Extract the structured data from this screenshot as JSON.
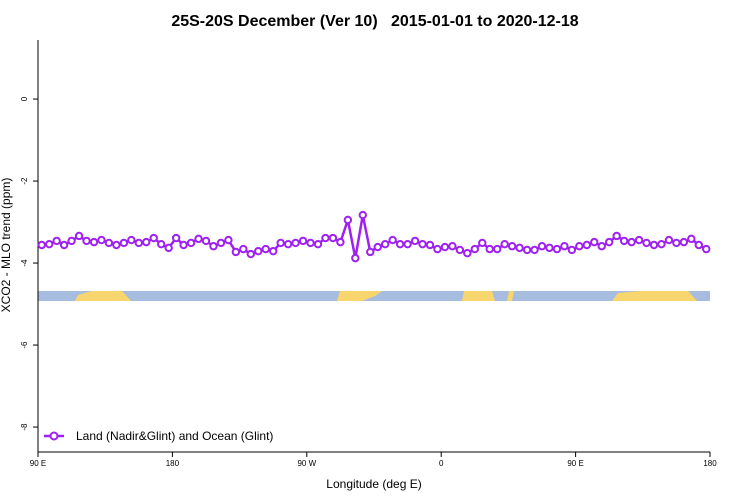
{
  "chart_data": {
    "type": "line",
    "title": "25S-20S December (Ver 10)   2015-01-01 to 2020-12-18",
    "x_label": "Longitude (deg E)",
    "y_label": "XCO2 - MLO trend (ppm)",
    "xlim": [
      90,
      540
    ],
    "xticks": [
      {
        "value": 90,
        "label": "90 E"
      },
      {
        "value": 180,
        "label": "180"
      },
      {
        "value": 270,
        "label": "90 W"
      },
      {
        "value": 360,
        "label": "0"
      },
      {
        "value": 450,
        "label": "90 E"
      },
      {
        "value": 540,
        "label": "180"
      }
    ],
    "ylim": [
      -8.56,
      1.44
    ],
    "yticks": [
      0,
      -2,
      -4,
      -6,
      -8
    ],
    "legend": "bottom-left",
    "x": [
      92.5,
      97.5,
      102.5,
      107.5,
      112.5,
      117.5,
      122.5,
      127.5,
      132.5,
      137.5,
      142.5,
      147.5,
      152.5,
      157.5,
      162.5,
      167.5,
      172.5,
      177.5,
      182.5,
      187.5,
      192.5,
      197.5,
      202.5,
      207.5,
      212.5,
      217.5,
      222.5,
      227.5,
      232.5,
      237.5,
      242.5,
      247.5,
      252.5,
      257.5,
      262.5,
      267.5,
      272.5,
      277.5,
      282.5,
      287.5,
      292.5,
      297.5,
      302.5,
      307.5,
      312.5,
      317.5,
      322.5,
      327.5,
      332.5,
      337.5,
      342.5,
      347.5,
      352.5,
      357.5,
      362.5,
      367.5,
      372.5,
      377.5,
      382.5,
      387.5,
      392.5,
      397.5,
      402.5,
      407.5,
      412.5,
      417.5,
      422.5,
      427.5,
      432.5,
      437.5,
      442.5,
      447.5,
      452.5,
      457.5,
      462.5,
      467.5,
      472.5,
      477.5,
      482.5,
      487.5,
      492.5,
      497.5,
      502.5,
      507.5,
      512.5,
      517.5,
      522.5,
      527.5,
      532.5,
      537.5
    ],
    "series": [
      {
        "name": "Land (Nadir&Glint) and Ocean (Glint)",
        "color": "#a020f0",
        "values": [
          -3.56,
          -3.54,
          -3.46,
          -3.56,
          -3.46,
          -3.34,
          -3.46,
          -3.49,
          -3.44,
          -3.51,
          -3.56,
          -3.51,
          -3.44,
          -3.51,
          -3.49,
          -3.39,
          -3.54,
          -3.63,
          -3.39,
          -3.56,
          -3.51,
          -3.41,
          -3.46,
          -3.59,
          -3.51,
          -3.44,
          -3.73,
          -3.66,
          -3.78,
          -3.71,
          -3.66,
          -3.71,
          -3.51,
          -3.54,
          -3.51,
          -3.46,
          -3.51,
          -3.54,
          -3.39,
          -3.39,
          -3.49,
          -2.95,
          -3.88,
          -2.83,
          -3.73,
          -3.61,
          -3.54,
          -3.44,
          -3.54,
          -3.54,
          -3.46,
          -3.54,
          -3.56,
          -3.66,
          -3.61,
          -3.59,
          -3.68,
          -3.76,
          -3.66,
          -3.51,
          -3.66,
          -3.66,
          -3.54,
          -3.59,
          -3.63,
          -3.68,
          -3.68,
          -3.59,
          -3.63,
          -3.66,
          -3.59,
          -3.68,
          -3.59,
          -3.56,
          -3.49,
          -3.59,
          -3.49,
          -3.34,
          -3.46,
          -3.49,
          -3.44,
          -3.51,
          -3.56,
          -3.54,
          -3.44,
          -3.51,
          -3.49,
          -3.41,
          -3.56,
          -3.66
        ]
      }
    ]
  }
}
